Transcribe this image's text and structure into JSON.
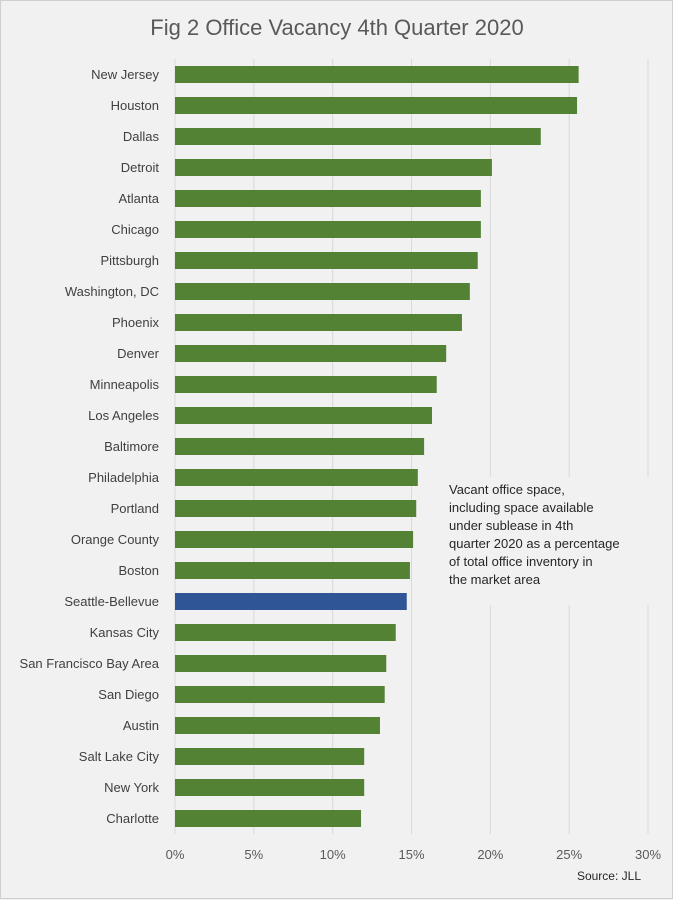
{
  "chart_data": {
    "type": "bar",
    "orientation": "horizontal",
    "title": "Fig 2 Office Vacancy 4th Quarter 2020",
    "categories": [
      "New Jersey",
      "Houston",
      "Dallas",
      "Detroit",
      "Atlanta",
      "Chicago",
      "Pittsburgh",
      "Washington, DC",
      "Phoenix",
      "Denver",
      "Minneapolis",
      "Los Angeles",
      "Baltimore",
      "Philadelphia",
      "Portland",
      "Orange County",
      "Boston",
      "Seattle-Bellevue",
      "Kansas City",
      "San Francisco Bay Area",
      "San Diego",
      "Austin",
      "Salt Lake City",
      "New York",
      "Charlotte"
    ],
    "values": [
      0.256,
      0.255,
      0.232,
      0.201,
      0.194,
      0.194,
      0.192,
      0.187,
      0.182,
      0.172,
      0.166,
      0.163,
      0.158,
      0.154,
      0.153,
      0.151,
      0.149,
      0.147,
      0.14,
      0.134,
      0.133,
      0.13,
      0.12,
      0.12,
      0.118
    ],
    "highlight": "Seattle-Bellevue",
    "colors": {
      "bar": "#548235",
      "highlight": "#2f5597"
    },
    "xlim": [
      0,
      0.3
    ],
    "ticks": [
      "0%",
      "5%",
      "10%",
      "15%",
      "20%",
      "25%",
      "30%"
    ],
    "grid": true,
    "annotation": [
      "Vacant office space,",
      "including space available",
      "under sublease in 4th",
      "quarter  2020 as a percentage",
      "of total office inventory  in",
      "the market  area"
    ],
    "source": "Source: JLL"
  }
}
